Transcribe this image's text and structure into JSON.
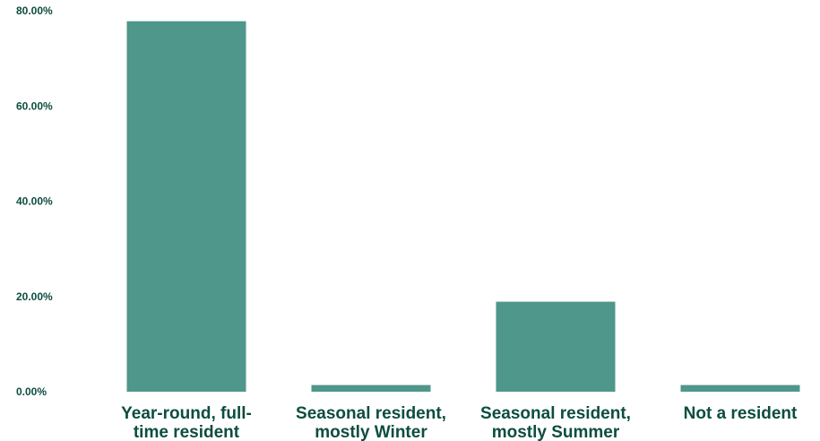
{
  "chart_data": {
    "type": "bar",
    "categories": [
      [
        "Year-round, full-",
        "time resident"
      ],
      [
        "Seasonal resident,",
        "mostly Winter"
      ],
      [
        "Seasonal resident,",
        "mostly Summer"
      ],
      [
        "Not a resident"
      ]
    ],
    "values": [
      77.8,
      1.4,
      18.9,
      1.4
    ],
    "ylim": [
      0,
      80
    ],
    "y_ticks": [
      "0.00%",
      "20.00%",
      "40.00%",
      "60.00%",
      "80.00%"
    ],
    "y_tick_values": [
      0,
      20,
      40,
      60,
      80
    ],
    "grid": false,
    "bar_color": "#4f968b",
    "text_color": "#0d4d3f"
  }
}
